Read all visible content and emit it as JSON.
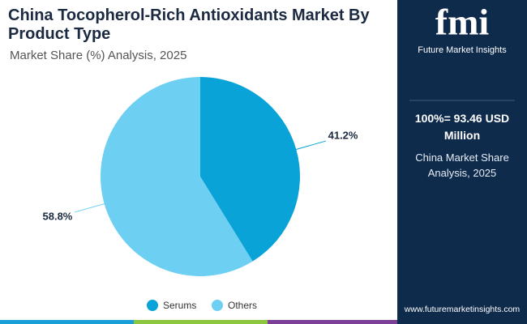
{
  "chart_data": {
    "type": "pie",
    "title": "China Tocopherol-Rich Antioxidants Market By Product Type",
    "subtitle": "Market Share (%) Analysis, 2025",
    "categories": [
      "Serums",
      "Others"
    ],
    "values": [
      41.2,
      58.8
    ],
    "value_labels": [
      "41.2%",
      "58.8%"
    ],
    "colors": [
      "#0aa3d8",
      "#6dcff2"
    ]
  },
  "panel": {
    "headline": "100%= 93.46 USD Million",
    "subtext": "China Market Share Analysis, 2025"
  },
  "brand": {
    "logo": "fmi",
    "name": "Future Market Insights",
    "website": "www.futuremarketinsights.com"
  }
}
